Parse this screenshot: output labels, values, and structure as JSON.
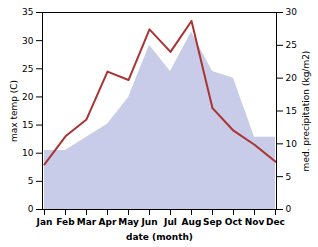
{
  "chart_data": {
    "type": "line",
    "categories": [
      "Jan",
      "Feb",
      "Mar",
      "Apr",
      "May",
      "Jun",
      "Jul",
      "Aug",
      "Sep",
      "Oct",
      "Nov",
      "Dec"
    ],
    "series": [
      {
        "type": "area",
        "axis": "y2",
        "color": "#c8cce8",
        "values": [
          9.0,
          9.0,
          11.0,
          13.0,
          17.0,
          25.0,
          21.0,
          27.0,
          21.0,
          20.0,
          11.0,
          11.0
        ]
      },
      {
        "type": "line",
        "color": "#aa3333",
        "values": [
          8.0,
          13.0,
          16.0,
          24.5,
          23.0,
          32.0,
          28.0,
          33.5,
          18.0,
          14.0,
          11.5,
          8.5
        ]
      }
    ],
    "xlabel": "date (month)",
    "ylabel": "max temp (C)",
    "y2label": "med. precipitation (kg/m2)",
    "ylim": [
      0,
      35
    ],
    "yticks": [
      0,
      5,
      10,
      15,
      20,
      25,
      30,
      35
    ],
    "y2lim": [
      0,
      30
    ],
    "y2ticks": [
      0,
      5,
      10,
      15,
      20,
      25,
      30
    ],
    "grid": false
  }
}
